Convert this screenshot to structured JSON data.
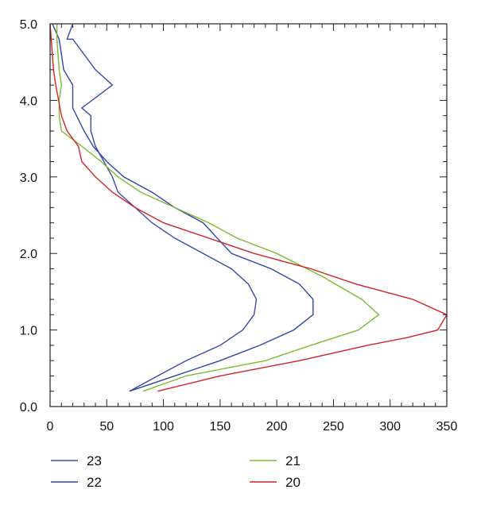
{
  "chart_data": {
    "type": "line",
    "x_ticks": [
      "0",
      "50",
      "100",
      "150",
      "200",
      "250",
      "300",
      "350"
    ],
    "y_ticks": [
      "0.0",
      "1.0",
      "2.0",
      "3.0",
      "4.0",
      "5.0"
    ],
    "xlim": [
      0,
      350
    ],
    "ylim": [
      0,
      5
    ],
    "grid": false,
    "legend_position": "bottom",
    "series": [
      {
        "name": "23",
        "color": "#3a4aa8",
        "x": [
          70,
          95,
          120,
          150,
          170,
          180,
          182,
          175,
          160,
          135,
          110,
          90,
          75,
          60,
          55,
          40,
          36,
          36,
          28,
          55,
          40,
          30,
          20,
          15,
          20
        ],
        "y": [
          0.2,
          0.4,
          0.6,
          0.8,
          1.0,
          1.2,
          1.4,
          1.6,
          1.8,
          2.0,
          2.2,
          2.4,
          2.6,
          2.8,
          3.0,
          3.4,
          3.6,
          3.8,
          3.9,
          4.2,
          4.4,
          4.6,
          4.8,
          4.8,
          5.0
        ]
      },
      {
        "name": "22",
        "color": "#2f45a6",
        "x": [
          70,
          110,
          150,
          185,
          215,
          232,
          232,
          220,
          195,
          160,
          135,
          110,
          90,
          65,
          50,
          38,
          30,
          20,
          20,
          12,
          10,
          8,
          5,
          2
        ],
        "y": [
          0.2,
          0.4,
          0.6,
          0.8,
          1.0,
          1.2,
          1.4,
          1.6,
          1.8,
          2.0,
          2.4,
          2.6,
          2.8,
          3.0,
          3.2,
          3.4,
          3.6,
          3.9,
          4.2,
          4.4,
          4.6,
          4.8,
          4.9,
          5.0
        ]
      },
      {
        "name": "21",
        "color": "#7dbb2e",
        "x": [
          82,
          120,
          190,
          230,
          272,
          290,
          275,
          240,
          200,
          165,
          140,
          110,
          80,
          60,
          45,
          28,
          10,
          8,
          8,
          10,
          8,
          7,
          6,
          6
        ],
        "y": [
          0.2,
          0.4,
          0.6,
          0.8,
          1.0,
          1.2,
          1.4,
          1.7,
          2.0,
          2.2,
          2.4,
          2.6,
          2.8,
          3.0,
          3.2,
          3.4,
          3.6,
          3.8,
          4.0,
          4.2,
          4.4,
          4.6,
          4.8,
          5.0
        ]
      },
      {
        "name": "20",
        "color": "#d2232a",
        "x": [
          95,
          150,
          220,
          280,
          315,
          342,
          350,
          320,
          270,
          230,
          180,
          140,
          100,
          75,
          55,
          40,
          28,
          25,
          15,
          10,
          5,
          3,
          2,
          1,
          0
        ],
        "y": [
          0.2,
          0.4,
          0.6,
          0.8,
          0.9,
          1.0,
          1.2,
          1.4,
          1.6,
          1.8,
          2.0,
          2.2,
          2.4,
          2.6,
          2.8,
          3.0,
          3.2,
          3.4,
          3.6,
          3.8,
          4.2,
          4.4,
          4.6,
          4.8,
          5.0
        ]
      }
    ]
  }
}
